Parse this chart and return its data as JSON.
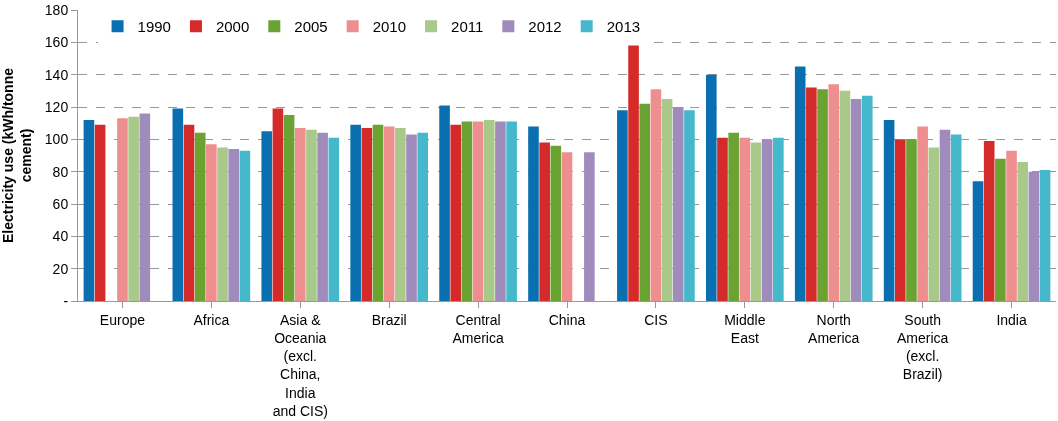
{
  "chart_data": {
    "type": "bar",
    "ylabel": "Electricity use (kWh/tonne\ncement)",
    "categories": [
      "Europe",
      "Africa",
      "Asia &\nOceania\n(excl.\nChina,\nIndia\nand CIS)",
      "Brazil",
      "Central\nAmerica",
      "China",
      "CIS",
      "Middle\nEast",
      "North\nAmerica",
      "South\nAmerica\n(excl.\nBrazil)",
      "India"
    ],
    "series": [
      {
        "name": "1990",
        "color": "#0a6fb0",
        "values": [
          112,
          119,
          105,
          109,
          121,
          108,
          118,
          140,
          145,
          112,
          74
        ]
      },
      {
        "name": "2000",
        "color": "#d42a2a",
        "values": [
          109,
          109,
          119,
          107,
          109,
          98,
          158,
          101,
          132,
          100,
          99
        ]
      },
      {
        "name": "2005",
        "color": "#6aa332",
        "values": [
          null,
          104,
          115,
          109,
          111,
          96,
          122,
          104,
          131,
          100,
          88
        ]
      },
      {
        "name": "2010",
        "color": "#ee8e8e",
        "values": [
          113,
          97,
          107,
          108,
          111,
          92,
          131,
          101,
          134,
          108,
          93
        ]
      },
      {
        "name": "2011",
        "color": "#a9c98a",
        "values": [
          114,
          95,
          106,
          107,
          112,
          null,
          125,
          98,
          130,
          95,
          86
        ]
      },
      {
        "name": "2012",
        "color": "#a08cbc",
        "values": [
          116,
          94,
          104,
          103,
          111,
          92,
          120,
          100,
          125,
          106,
          80
        ]
      },
      {
        "name": "2013",
        "color": "#45b8cc",
        "values": [
          null,
          93,
          101,
          104,
          111,
          null,
          118,
          101,
          127,
          103,
          81
        ]
      }
    ],
    "ylim": [
      0,
      180
    ],
    "yticks": [
      {
        "value": 0,
        "label": "-"
      },
      20,
      40,
      60,
      80,
      100,
      120,
      140,
      160,
      180
    ],
    "grid": "y",
    "legend": "top left"
  }
}
